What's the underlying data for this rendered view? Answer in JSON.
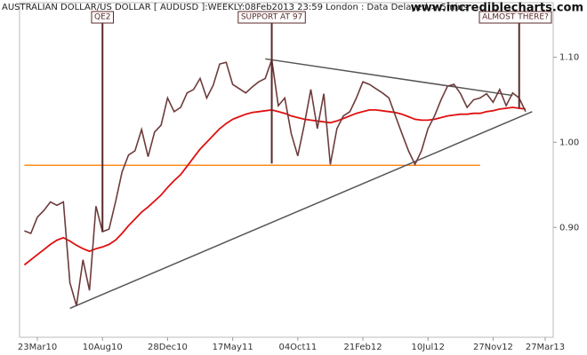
{
  "chart_data": {
    "type": "line",
    "title": "AUSTRALIAN DOLLAR/US DOLLAR [ AUDUSD ]:WEEKLY:08Feb2013 23:59 London : Data Delayed > 5mins",
    "source": "www.incrediblecharts.com",
    "categories": [
      null,
      null,
      "23Mar10",
      null,
      null,
      null,
      null,
      null,
      null,
      null,
      null,
      null,
      "10Aug10",
      null,
      null,
      null,
      null,
      null,
      null,
      null,
      null,
      null,
      "28Dec10",
      null,
      null,
      null,
      null,
      null,
      null,
      null,
      null,
      null,
      "17May11",
      null,
      null,
      null,
      null,
      null,
      null,
      null,
      null,
      null,
      "04Oct11",
      null,
      null,
      null,
      null,
      null,
      null,
      null,
      null,
      null,
      "21Feb12",
      null,
      null,
      null,
      null,
      null,
      null,
      null,
      null,
      null,
      "10Jul12",
      null,
      null,
      null,
      null,
      null,
      null,
      null,
      null,
      null,
      "27Nov12",
      null,
      null,
      null,
      null,
      null,
      null,
      null,
      "27Mar13"
    ],
    "series": [
      {
        "color": "#6e3b3b",
        "values": [
          0.896,
          0.893,
          0.912,
          0.92,
          0.93,
          0.926,
          0.93,
          0.835,
          0.808,
          0.862,
          0.826,
          0.925,
          0.895,
          0.898,
          0.93,
          0.965,
          0.985,
          0.99,
          1.015,
          0.983,
          1.012,
          1.02,
          1.052,
          1.036,
          1.041,
          1.058,
          1.062,
          1.075,
          1.052,
          1.067,
          1.092,
          1.094,
          1.068,
          1.063,
          1.058,
          1.065,
          1.071,
          1.075,
          1.097,
          1.043,
          1.052,
          1.01,
          0.984,
          1.021,
          1.062,
          1.016,
          1.057,
          0.974,
          1.016,
          1.031,
          1.036,
          1.052,
          1.071,
          1.068,
          1.063,
          1.058,
          1.052,
          1.031,
          1.01,
          0.99,
          0.974,
          0.99,
          1.016,
          1.031,
          1.05,
          1.066,
          1.068,
          1.057,
          1.041,
          1.05,
          1.052,
          1.057,
          1.047,
          1.062,
          1.043,
          1.058,
          1.052,
          1.036,
          null,
          null,
          null
        ]
      },
      {
        "color": "#e01010",
        "values": [
          0.856,
          0.862,
          0.868,
          0.874,
          0.88,
          0.885,
          0.888,
          0.884,
          0.879,
          0.875,
          0.872,
          0.875,
          0.877,
          0.88,
          0.885,
          0.893,
          0.902,
          0.91,
          0.918,
          0.924,
          0.931,
          0.938,
          0.947,
          0.955,
          0.962,
          0.972,
          0.982,
          0.992,
          1.0,
          1.008,
          1.016,
          1.022,
          1.027,
          1.03,
          1.033,
          1.035,
          1.036,
          1.037,
          1.038,
          1.036,
          1.034,
          1.031,
          1.029,
          1.027,
          1.026,
          1.025,
          1.024,
          1.023,
          1.025,
          1.028,
          1.031,
          1.034,
          1.036,
          1.038,
          1.038,
          1.037,
          1.036,
          1.035,
          1.033,
          1.03,
          1.027,
          1.026,
          1.026,
          1.027,
          1.029,
          1.031,
          1.032,
          1.033,
          1.033,
          1.034,
          1.034,
          1.036,
          1.037,
          1.039,
          1.04,
          1.041,
          1.04,
          1.039,
          null,
          null,
          null
        ]
      }
    ],
    "overlays": [
      {
        "color": "#ff8c1a",
        "x": [
          0,
          70
        ],
        "values": [
          0.973,
          0.973
        ]
      },
      {
        "color": "#555555",
        "x": [
          7,
          78
        ],
        "values": [
          0.805,
          1.036
        ]
      },
      {
        "color": "#555555",
        "x": [
          37,
          75
        ],
        "values": [
          1.098,
          1.055
        ]
      }
    ],
    "annotations": [
      {
        "text": "QE2",
        "x": 12,
        "value": 0.895
      },
      {
        "text": "SUPPORT AT 97",
        "x": 38,
        "value": 0.975
      },
      {
        "text": "ALMOST THERE?",
        "x": 76,
        "value": 1.04
      }
    ],
    "ylim": [
      0.771,
      1.164
    ],
    "yticks": [
      {
        "value": 0.9,
        "label": "0.90"
      },
      {
        "value": 1.0,
        "label": "1.00"
      },
      {
        "value": 1.1,
        "label": "1.10"
      }
    ]
  }
}
